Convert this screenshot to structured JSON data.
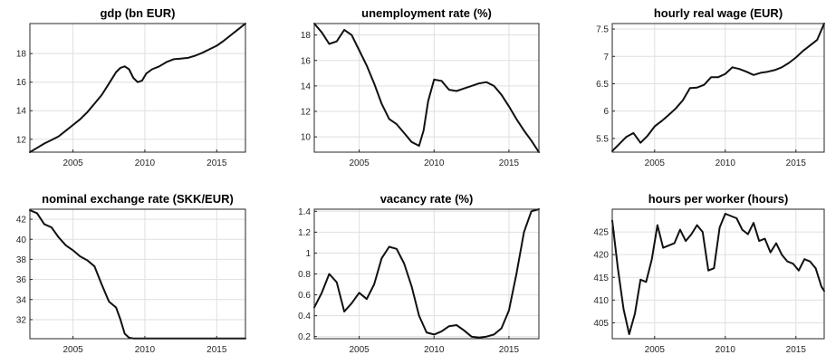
{
  "chart_data": [
    {
      "type": "line",
      "title": "gdp (bn EUR)",
      "xlim": [
        2002,
        2017
      ],
      "xticks": [
        2005,
        2010,
        2015
      ],
      "ylim": [
        11.1,
        20.1
      ],
      "yticks": [
        12,
        14,
        16,
        18
      ],
      "grid": true,
      "series": [
        {
          "x": [
            2002.0,
            2002.5,
            2003.0,
            2003.5,
            2004.0,
            2004.5,
            2005.0,
            2005.5,
            2006.0,
            2006.5,
            2007.0,
            2007.5,
            2008.0,
            2008.3,
            2008.6,
            2008.9,
            2009.2,
            2009.5,
            2009.8,
            2010.1,
            2010.5,
            2011.0,
            2011.5,
            2012.0,
            2012.5,
            2013.0,
            2013.5,
            2014.0,
            2014.5,
            2015.0,
            2015.5,
            2016.0,
            2016.5,
            2017.0
          ],
          "y": [
            11.1,
            11.4,
            11.7,
            11.95,
            12.2,
            12.6,
            13.0,
            13.4,
            13.9,
            14.5,
            15.1,
            15.9,
            16.7,
            17.0,
            17.1,
            16.9,
            16.3,
            16.0,
            16.1,
            16.6,
            16.9,
            17.1,
            17.4,
            17.6,
            17.65,
            17.7,
            17.85,
            18.05,
            18.3,
            18.55,
            18.9,
            19.3,
            19.7,
            20.1
          ]
        }
      ]
    },
    {
      "type": "line",
      "title": "unemployment rate (%)",
      "xlim": [
        2002,
        2017
      ],
      "xticks": [
        2005,
        2010,
        2015
      ],
      "ylim": [
        8.8,
        18.9
      ],
      "yticks": [
        10,
        12,
        14,
        16,
        18
      ],
      "grid": true,
      "series": [
        {
          "x": [
            2002.0,
            2002.5,
            2003.0,
            2003.5,
            2004.0,
            2004.5,
            2005.0,
            2005.5,
            2006.0,
            2006.5,
            2007.0,
            2007.5,
            2008.0,
            2008.5,
            2009.0,
            2009.3,
            2009.6,
            2010.0,
            2010.5,
            2011.0,
            2011.5,
            2012.0,
            2012.5,
            2013.0,
            2013.5,
            2014.0,
            2014.5,
            2015.0,
            2015.5,
            2016.0,
            2016.5,
            2017.0
          ],
          "y": [
            18.9,
            18.2,
            17.3,
            17.5,
            18.4,
            18.0,
            16.8,
            15.6,
            14.2,
            12.6,
            11.4,
            11.0,
            10.3,
            9.6,
            9.3,
            10.5,
            12.8,
            14.5,
            14.4,
            13.7,
            13.6,
            13.8,
            14.0,
            14.2,
            14.3,
            14.0,
            13.3,
            12.4,
            11.4,
            10.5,
            9.7,
            8.8
          ]
        }
      ]
    },
    {
      "type": "line",
      "title": "hourly real wage (EUR)",
      "xlim": [
        2002,
        2017
      ],
      "xticks": [
        2005,
        2010,
        2015
      ],
      "ylim": [
        5.25,
        7.6
      ],
      "yticks": [
        5.5,
        6,
        6.5,
        7,
        7.5
      ],
      "grid": true,
      "series": [
        {
          "x": [
            2002.0,
            2002.5,
            2003.0,
            2003.5,
            2004.0,
            2004.5,
            2005.0,
            2005.5,
            2006.0,
            2006.5,
            2007.0,
            2007.5,
            2008.0,
            2008.5,
            2009.0,
            2009.5,
            2010.0,
            2010.5,
            2011.0,
            2011.5,
            2012.0,
            2012.5,
            2013.0,
            2013.5,
            2014.0,
            2014.5,
            2015.0,
            2015.5,
            2016.0,
            2016.5,
            2017.0
          ],
          "y": [
            5.27,
            5.4,
            5.53,
            5.6,
            5.42,
            5.55,
            5.72,
            5.82,
            5.93,
            6.05,
            6.2,
            6.42,
            6.43,
            6.48,
            6.62,
            6.62,
            6.68,
            6.8,
            6.77,
            6.72,
            6.66,
            6.7,
            6.72,
            6.75,
            6.8,
            6.88,
            6.98,
            7.1,
            7.2,
            7.3,
            7.6
          ]
        }
      ]
    },
    {
      "type": "line",
      "title": "nominal exchange rate (SKK/EUR)",
      "xlim": [
        2002,
        2017
      ],
      "xticks": [
        2005,
        2010,
        2015
      ],
      "ylim": [
        30.1,
        43
      ],
      "yticks": [
        32,
        34,
        36,
        38,
        40,
        42
      ],
      "grid": true,
      "series": [
        {
          "x": [
            2002.0,
            2002.5,
            2003.0,
            2003.5,
            2004.0,
            2004.5,
            2005.0,
            2005.5,
            2006.0,
            2006.5,
            2007.0,
            2007.5,
            2008.0,
            2008.3,
            2008.6,
            2008.9,
            2009.2,
            2009.5,
            2010.0,
            2011.0,
            2012.0,
            2013.0,
            2014.0,
            2015.0,
            2016.0,
            2017.0
          ],
          "y": [
            42.9,
            42.6,
            41.5,
            41.2,
            40.2,
            39.4,
            38.9,
            38.3,
            37.9,
            37.3,
            35.5,
            33.8,
            33.2,
            32.0,
            30.6,
            30.2,
            30.13,
            30.13,
            30.13,
            30.13,
            30.13,
            30.13,
            30.13,
            30.13,
            30.13,
            30.13
          ]
        }
      ]
    },
    {
      "type": "line",
      "title": "vacancy rate (%)",
      "xlim": [
        2002,
        2017
      ],
      "xticks": [
        2005,
        2010,
        2015
      ],
      "ylim": [
        0.18,
        1.42
      ],
      "yticks": [
        0.2,
        0.4,
        0.6,
        0.8,
        1,
        1.2,
        1.4
      ],
      "grid": true,
      "series": [
        {
          "x": [
            2002.0,
            2002.5,
            2003.0,
            2003.5,
            2004.0,
            2004.5,
            2005.0,
            2005.5,
            2006.0,
            2006.5,
            2007.0,
            2007.5,
            2008.0,
            2008.5,
            2009.0,
            2009.5,
            2010.0,
            2010.5,
            2011.0,
            2011.5,
            2012.0,
            2012.5,
            2013.0,
            2013.5,
            2014.0,
            2014.5,
            2015.0,
            2015.5,
            2016.0,
            2016.5,
            2017.0
          ],
          "y": [
            0.48,
            0.62,
            0.8,
            0.72,
            0.44,
            0.52,
            0.62,
            0.56,
            0.7,
            0.95,
            1.06,
            1.04,
            0.9,
            0.68,
            0.4,
            0.24,
            0.22,
            0.25,
            0.3,
            0.31,
            0.26,
            0.2,
            0.19,
            0.2,
            0.22,
            0.28,
            0.45,
            0.8,
            1.2,
            1.4,
            1.42
          ]
        }
      ]
    },
    {
      "type": "line",
      "title": "hours per worker (hours)",
      "xlim": [
        2002,
        2017
      ],
      "xticks": [
        2005,
        2010,
        2015
      ],
      "ylim": [
        401.5,
        430
      ],
      "yticks": [
        405,
        410,
        415,
        420,
        425
      ],
      "grid": true,
      "series": [
        {
          "x": [
            2002.0,
            2002.4,
            2002.8,
            2003.2,
            2003.6,
            2004.0,
            2004.4,
            2004.8,
            2005.2,
            2005.6,
            2006.0,
            2006.4,
            2006.8,
            2007.2,
            2007.6,
            2008.0,
            2008.4,
            2008.8,
            2009.2,
            2009.6,
            2010.0,
            2010.4,
            2010.8,
            2011.2,
            2011.6,
            2012.0,
            2012.4,
            2012.8,
            2013.2,
            2013.6,
            2014.0,
            2014.4,
            2014.8,
            2015.2,
            2015.6,
            2016.0,
            2016.4,
            2016.8,
            2017.0
          ],
          "y": [
            427.5,
            417.0,
            408.0,
            402.5,
            407.0,
            414.5,
            414.0,
            419.0,
            426.5,
            421.5,
            422.0,
            422.5,
            425.5,
            423.0,
            424.5,
            426.5,
            425.0,
            416.5,
            417.0,
            426.0,
            429.0,
            428.5,
            428.0,
            425.5,
            424.5,
            427.0,
            423.0,
            423.5,
            420.5,
            422.5,
            420.0,
            418.5,
            418.0,
            416.5,
            419.0,
            418.5,
            417.0,
            413.0,
            412.0
          ]
        }
      ]
    }
  ]
}
